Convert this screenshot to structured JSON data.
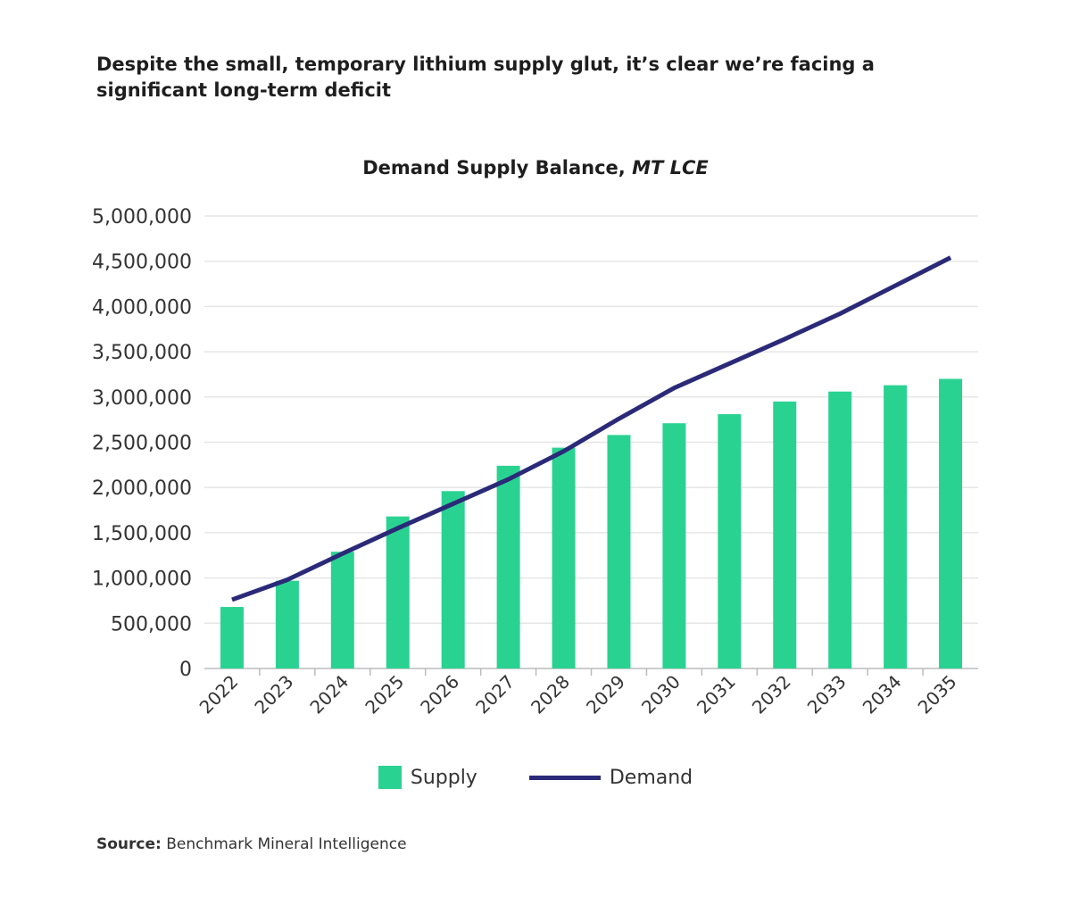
{
  "headline": "Despite the small, temporary lithium supply glut, it’s clear we’re facing a significant long-term deficit",
  "source": {
    "label": "Source:",
    "text": " Benchmark Mineral Intelligence"
  },
  "chart_data": {
    "type": "bar+line",
    "title": "Demand Supply Balance, ",
    "title_italic": "MT LCE",
    "categories": [
      "2022",
      "2023",
      "2024",
      "2025",
      "2026",
      "2027",
      "2028",
      "2029",
      "2030",
      "2031",
      "2032",
      "2033",
      "2034",
      "2035"
    ],
    "series": [
      {
        "name": "Supply",
        "type": "bar",
        "color": "#2ad292",
        "values": [
          680000,
          970000,
          1290000,
          1680000,
          1960000,
          2240000,
          2440000,
          2580000,
          2710000,
          2810000,
          2950000,
          3060000,
          3130000,
          3200000
        ]
      },
      {
        "name": "Demand",
        "type": "line",
        "color": "#2b2a78",
        "values": [
          760000,
          980000,
          1270000,
          1550000,
          1820000,
          2090000,
          2400000,
          2760000,
          3100000,
          3370000,
          3640000,
          3920000,
          4230000,
          4540000
        ]
      }
    ],
    "ylim": [
      0,
      5000000
    ],
    "yticks": [
      "0",
      "500,000",
      "1,000,000",
      "1,500,000",
      "2,000,000",
      "2,500,000",
      "3,000,000",
      "3,500,000",
      "4,000,000",
      "4,500,000",
      "5,000,000"
    ],
    "grid": true,
    "legend": "bottom"
  }
}
